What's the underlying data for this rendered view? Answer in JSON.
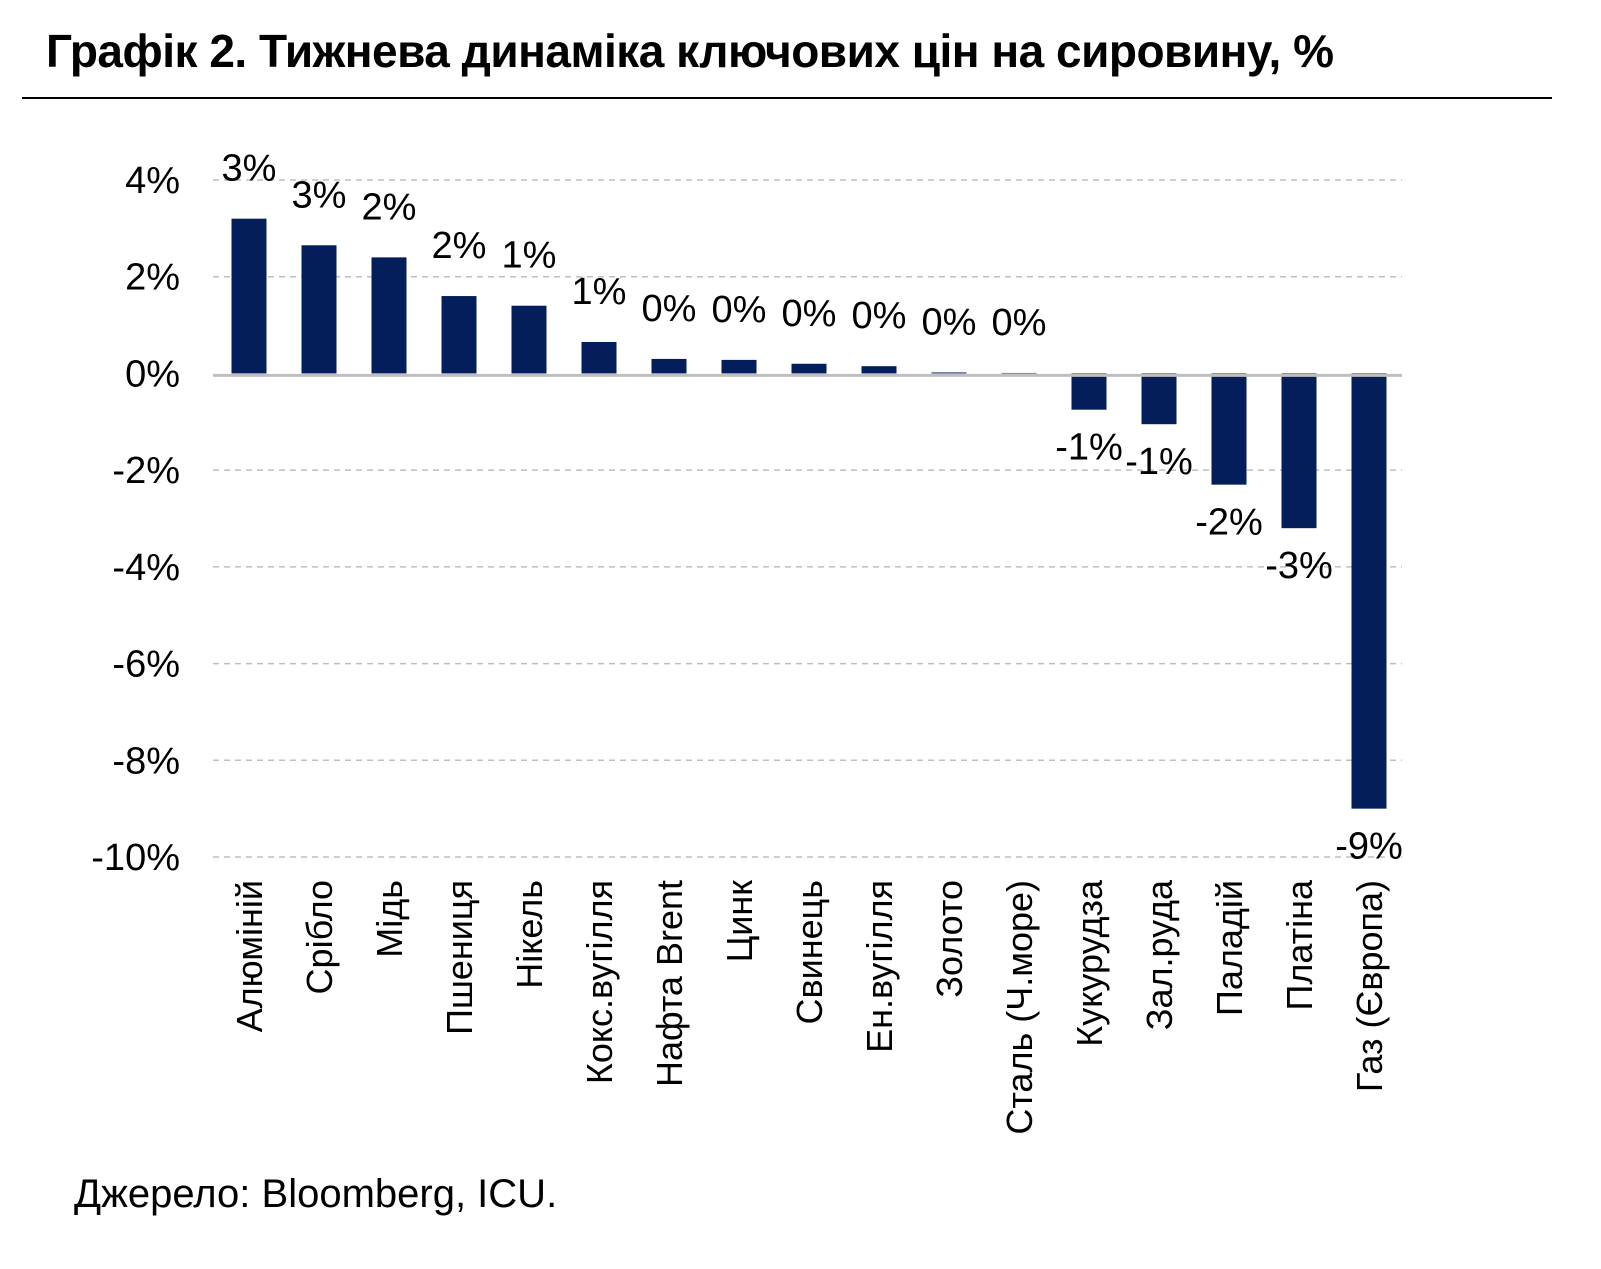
{
  "title": "Графік 2. Тижнева динаміка ключових цін на сировину, %",
  "source": "Джерело: Bloomberg, ICU.",
  "colors": {
    "bar": "#031E5A",
    "grid": "#BFBFBF",
    "zero_line": "#BFBFBF"
  },
  "chart_data": {
    "type": "bar",
    "title": "Графік 2. Тижнева динаміка ключових цін на сировину, %",
    "xlabel": "",
    "ylabel": "",
    "ylim": [
      -10,
      4
    ],
    "yticks": [
      4,
      2,
      0,
      -2,
      -4,
      -6,
      -8,
      -10
    ],
    "ytick_labels": [
      "4%",
      "2%",
      "0%",
      "-2%",
      "-4%",
      "-6%",
      "-8%",
      "-10%"
    ],
    "grid": true,
    "categories": [
      "Алюміній",
      "Срібло",
      "Мідь",
      "Пшениця",
      "Нікель",
      "Кокс.вугілля",
      "Нафта Brent",
      "Цинк",
      "Свинець",
      "Ен.вугілля",
      "Золото",
      "Сталь (Ч.море)",
      "Кукурудза",
      "Зал.руда",
      "Паладій",
      "Платіна",
      "Газ (Європа)"
    ],
    "values": [
      3.2,
      2.65,
      2.4,
      1.6,
      1.4,
      0.65,
      0.3,
      0.28,
      0.2,
      0.15,
      0.02,
      0.01,
      -0.75,
      -1.05,
      -2.3,
      -3.2,
      -9.0
    ],
    "data_labels": [
      "3%",
      "3%",
      "2%",
      "2%",
      "1%",
      "1%",
      "0%",
      "0%",
      "0%",
      "0%",
      "0%",
      "0%",
      "-1%",
      "-1%",
      "-2%",
      "-3%",
      "-9%"
    ]
  }
}
